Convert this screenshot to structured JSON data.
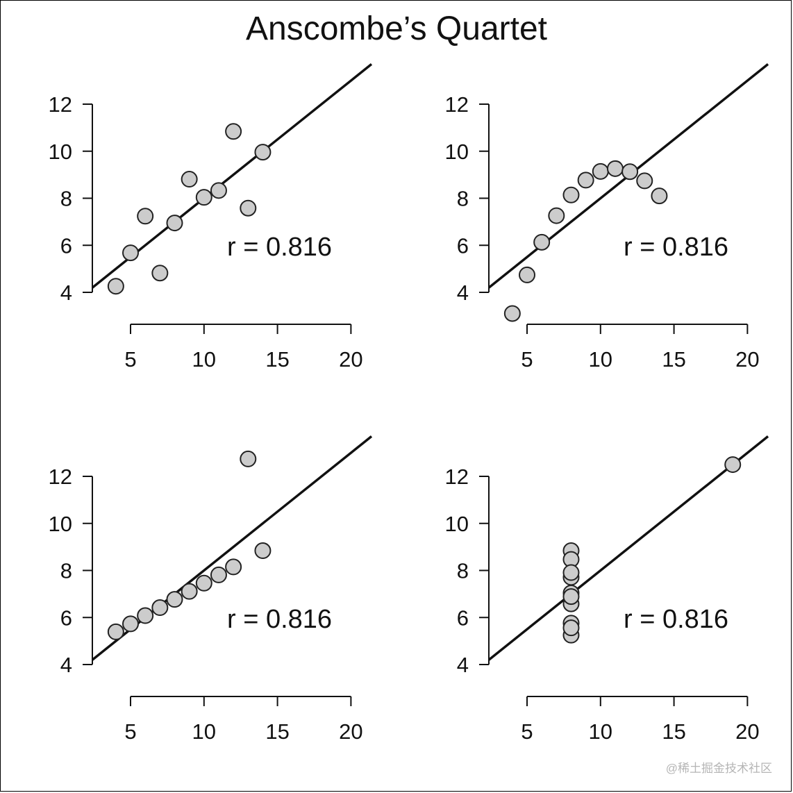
{
  "title": "Anscombe’s Quartet",
  "watermark": "@稀土掘金技术社区",
  "style": {
    "point_fill": "#cccccc",
    "point_stroke": "#222222",
    "line_color": "#111111",
    "axis_color": "#111111",
    "background": "#ffffff"
  },
  "chart_data": [
    {
      "type": "scatter",
      "title": "",
      "xlabel": "",
      "ylabel": "",
      "x": [
        10,
        8,
        13,
        9,
        11,
        14,
        6,
        4,
        12,
        7,
        5
      ],
      "y": [
        8.04,
        6.95,
        7.58,
        8.81,
        8.33,
        9.96,
        7.24,
        4.26,
        10.84,
        4.82,
        5.68
      ],
      "fit_line": {
        "intercept": 3.0,
        "slope": 0.5
      },
      "annotation": "r = 0.816",
      "xticks": [
        "5",
        "10",
        "15",
        "20"
      ],
      "yticks": [
        "4",
        "6",
        "8",
        "10",
        "12"
      ],
      "xlim": [
        2.4,
        21.4
      ],
      "ylim": [
        4,
        12
      ],
      "grid": false
    },
    {
      "type": "scatter",
      "title": "",
      "xlabel": "",
      "ylabel": "",
      "x": [
        10,
        8,
        13,
        9,
        11,
        14,
        6,
        4,
        12,
        7,
        5
      ],
      "y": [
        9.14,
        8.14,
        8.74,
        8.77,
        9.26,
        8.1,
        6.13,
        3.1,
        9.13,
        7.26,
        4.74
      ],
      "fit_line": {
        "intercept": 3.0,
        "slope": 0.5
      },
      "annotation": "r = 0.816",
      "xticks": [
        "5",
        "10",
        "15",
        "20"
      ],
      "yticks": [
        "4",
        "6",
        "8",
        "10",
        "12"
      ],
      "xlim": [
        2.4,
        21.4
      ],
      "ylim": [
        4,
        12
      ],
      "grid": false
    },
    {
      "type": "scatter",
      "title": "",
      "xlabel": "",
      "ylabel": "",
      "x": [
        10,
        8,
        13,
        9,
        11,
        14,
        6,
        4,
        12,
        7,
        5
      ],
      "y": [
        7.46,
        6.77,
        12.74,
        7.11,
        7.81,
        8.84,
        6.08,
        5.39,
        8.15,
        6.42,
        5.73
      ],
      "fit_line": {
        "intercept": 3.0,
        "slope": 0.5
      },
      "annotation": "r = 0.816",
      "xticks": [
        "5",
        "10",
        "15",
        "20"
      ],
      "yticks": [
        "4",
        "6",
        "8",
        "10",
        "12"
      ],
      "xlim": [
        2.4,
        21.4
      ],
      "ylim": [
        4,
        12
      ],
      "grid": false
    },
    {
      "type": "scatter",
      "title": "",
      "xlabel": "",
      "ylabel": "",
      "x": [
        8,
        8,
        8,
        8,
        8,
        8,
        8,
        19,
        8,
        8,
        8
      ],
      "y": [
        6.58,
        5.76,
        7.71,
        8.84,
        8.47,
        7.04,
        5.25,
        12.5,
        5.56,
        7.91,
        6.89
      ],
      "fit_line": {
        "intercept": 3.0,
        "slope": 0.5
      },
      "annotation": "r = 0.816",
      "xticks": [
        "5",
        "10",
        "15",
        "20"
      ],
      "yticks": [
        "4",
        "6",
        "8",
        "10",
        "12"
      ],
      "xlim": [
        2.4,
        21.4
      ],
      "ylim": [
        4,
        12
      ],
      "grid": false
    }
  ]
}
